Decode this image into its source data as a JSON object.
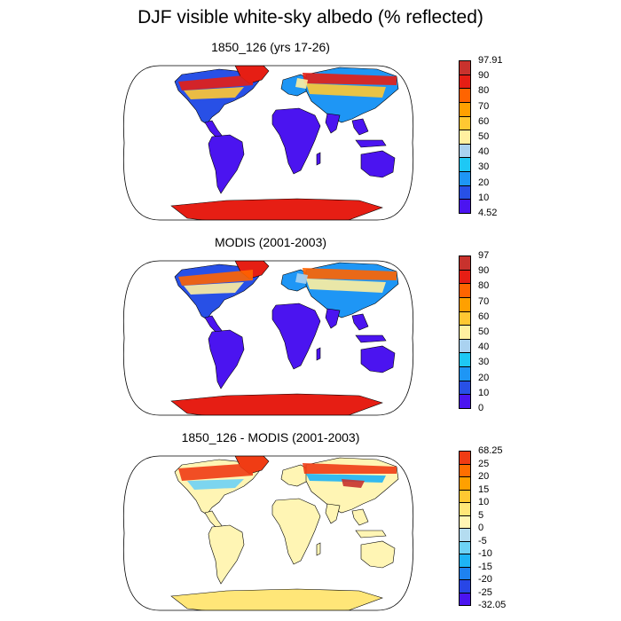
{
  "title": "DJF visible white-sky albedo (% reflected)",
  "palette_abs": [
    "#4b14f0",
    "#2850e6",
    "#1e96f5",
    "#1ec8f5",
    "#aad2f0",
    "#fff0a0",
    "#ffc832",
    "#ffa000",
    "#ff6400",
    "#e61e14",
    "#c8322d"
  ],
  "palette_diff": [
    "#4b14f0",
    "#2846e6",
    "#1e82f0",
    "#1eb4f5",
    "#6ed2f5",
    "#b4dcf0",
    "#fff5b4",
    "#ffe678",
    "#ffc832",
    "#ffa000",
    "#ff6e00",
    "#f03c14",
    "#dc1e14",
    "#c8322d"
  ],
  "panels": [
    {
      "title": "1850_126 (yrs 17-26)",
      "colorbar_labels": [
        "97.91",
        "90",
        "80",
        "70",
        "60",
        "50",
        "40",
        "30",
        "20",
        "10",
        "4.52"
      ]
    },
    {
      "title": "MODIS (2001-2003)",
      "colorbar_labels": [
        "97",
        "90",
        "80",
        "70",
        "60",
        "50",
        "40",
        "30",
        "20",
        "10",
        "0"
      ]
    },
    {
      "title": "1850_126 - MODIS (2001-2003)",
      "colorbar_labels": [
        "68.25",
        "25",
        "20",
        "15",
        "10",
        "5",
        "0",
        "-5",
        "-10",
        "-15",
        "-20",
        "-25",
        "-32.05"
      ]
    }
  ]
}
